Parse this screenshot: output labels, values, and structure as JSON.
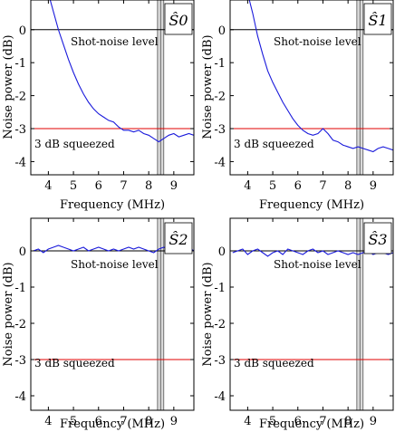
{
  "chart_data": [
    {
      "type": "line",
      "panel_label": "Ŝ0",
      "xlabel": "Frequency (MHz)",
      "ylabel": "Noise power (dB)",
      "xlim": [
        3.3,
        9.8
      ],
      "ylim": [
        -4.4,
        0.9
      ],
      "xticks": [
        4,
        5,
        6,
        7,
        8,
        9
      ],
      "yticks": [
        0,
        -1,
        -2,
        -3,
        -4
      ],
      "reference_lines": [
        {
          "label": "Shot-noise level",
          "y": 0,
          "color": "#000000"
        },
        {
          "label": "3 dB squeezed",
          "y": -3,
          "color": "#e00000"
        }
      ],
      "shaded_band": [
        8.35,
        8.6
      ],
      "series": [
        {
          "color": "#1a1adb",
          "x": [
            4.0,
            4.2,
            4.4,
            4.6,
            4.8,
            5.0,
            5.2,
            5.4,
            5.6,
            5.8,
            6.0,
            6.2,
            6.4,
            6.6,
            6.8,
            7.0,
            7.2,
            7.4,
            7.6,
            7.8,
            8.0,
            8.2,
            8.4,
            8.6,
            8.8,
            9.0,
            9.2,
            9.4,
            9.6,
            9.8
          ],
          "y": [
            1.1,
            0.55,
            0.0,
            -0.45,
            -0.9,
            -1.3,
            -1.65,
            -1.95,
            -2.2,
            -2.4,
            -2.55,
            -2.65,
            -2.75,
            -2.8,
            -2.95,
            -3.05,
            -3.05,
            -3.1,
            -3.05,
            -3.15,
            -3.2,
            -3.3,
            -3.4,
            -3.3,
            -3.2,
            -3.15,
            -3.25,
            -3.2,
            -3.15,
            -3.2
          ]
        }
      ]
    },
    {
      "type": "line",
      "panel_label": "Ŝ1",
      "xlabel": "Frequency (MHz)",
      "ylabel": "Noise power (dB)",
      "xlim": [
        3.3,
        9.8
      ],
      "ylim": [
        -4.4,
        0.9
      ],
      "xticks": [
        4,
        5,
        6,
        7,
        8,
        9
      ],
      "yticks": [
        0,
        -1,
        -2,
        -3,
        -4
      ],
      "reference_lines": [
        {
          "label": "Shot-noise level",
          "y": 0,
          "color": "#000000"
        },
        {
          "label": "3 dB squeezed",
          "y": -3,
          "color": "#e00000"
        }
      ],
      "shaded_band": [
        8.35,
        8.6
      ],
      "series": [
        {
          "color": "#1a1adb",
          "x": [
            4.0,
            4.2,
            4.4,
            4.6,
            4.8,
            5.0,
            5.2,
            5.4,
            5.6,
            5.8,
            6.0,
            6.2,
            6.4,
            6.6,
            6.8,
            7.0,
            7.2,
            7.4,
            7.6,
            7.8,
            8.0,
            8.2,
            8.4,
            8.6,
            8.8,
            9.0,
            9.2,
            9.4,
            9.6,
            9.8
          ],
          "y": [
            1.1,
            0.5,
            -0.2,
            -0.75,
            -1.25,
            -1.6,
            -1.9,
            -2.2,
            -2.45,
            -2.7,
            -2.9,
            -3.05,
            -3.15,
            -3.2,
            -3.15,
            -3.0,
            -3.15,
            -3.35,
            -3.4,
            -3.5,
            -3.55,
            -3.6,
            -3.55,
            -3.6,
            -3.65,
            -3.7,
            -3.6,
            -3.55,
            -3.6,
            -3.65
          ]
        }
      ]
    },
    {
      "type": "line",
      "panel_label": "Ŝ2",
      "xlabel": "Frequency (MHz)",
      "ylabel": "Noise power (dB)",
      "xlim": [
        3.3,
        9.8
      ],
      "ylim": [
        -4.4,
        0.9
      ],
      "xticks": [
        4,
        5,
        6,
        7,
        8,
        9
      ],
      "yticks": [
        0,
        -1,
        -2,
        -3,
        -4
      ],
      "reference_lines": [
        {
          "label": "Shot-noise level",
          "y": 0,
          "color": "#000000"
        },
        {
          "label": "3 dB squeezed",
          "y": -3,
          "color": "#e00000"
        }
      ],
      "shaded_band": [
        8.35,
        8.6
      ],
      "series": [
        {
          "color": "#1a1adb",
          "x": [
            3.4,
            3.6,
            3.8,
            4.0,
            4.2,
            4.4,
            4.6,
            4.8,
            5.0,
            5.2,
            5.4,
            5.6,
            5.8,
            6.0,
            6.2,
            6.4,
            6.6,
            6.8,
            7.0,
            7.2,
            7.4,
            7.6,
            7.8,
            8.0,
            8.2,
            8.4,
            8.6,
            8.8,
            9.0,
            9.2,
            9.4,
            9.6,
            9.8
          ],
          "y": [
            0.0,
            0.05,
            -0.05,
            0.05,
            0.1,
            0.15,
            0.1,
            0.05,
            0.0,
            0.05,
            0.1,
            0.0,
            0.05,
            0.1,
            0.05,
            0.0,
            0.05,
            0.0,
            0.05,
            0.1,
            0.05,
            0.1,
            0.05,
            0.0,
            -0.05,
            0.05,
            0.1,
            0.05,
            0.1,
            0.15,
            0.05,
            0.1,
            0.0
          ]
        }
      ]
    },
    {
      "type": "line",
      "panel_label": "Ŝ3",
      "xlabel": "Frequency (MHz)",
      "ylabel": "Noise power (dB)",
      "xlim": [
        3.3,
        9.8
      ],
      "ylim": [
        -4.4,
        0.9
      ],
      "xticks": [
        4,
        5,
        6,
        7,
        8,
        9
      ],
      "yticks": [
        0,
        -1,
        -2,
        -3,
        -4
      ],
      "reference_lines": [
        {
          "label": "Shot-noise level",
          "y": 0,
          "color": "#000000"
        },
        {
          "label": "3 dB squeezed",
          "y": -3,
          "color": "#e00000"
        }
      ],
      "shaded_band": [
        8.35,
        8.6
      ],
      "series": [
        {
          "color": "#1a1adb",
          "x": [
            3.4,
            3.6,
            3.8,
            4.0,
            4.2,
            4.4,
            4.6,
            4.8,
            5.0,
            5.2,
            5.4,
            5.6,
            5.8,
            6.0,
            6.2,
            6.4,
            6.6,
            6.8,
            7.0,
            7.2,
            7.4,
            7.6,
            7.8,
            8.0,
            8.2,
            8.4,
            8.6,
            8.8,
            9.0,
            9.2,
            9.4,
            9.6,
            9.8
          ],
          "y": [
            -0.05,
            0.0,
            0.05,
            -0.1,
            0.0,
            0.05,
            -0.05,
            -0.15,
            -0.05,
            0.0,
            -0.1,
            0.05,
            0.0,
            -0.05,
            -0.1,
            0.0,
            0.05,
            -0.05,
            0.0,
            -0.1,
            -0.05,
            0.0,
            -0.05,
            -0.1,
            -0.05,
            -0.1,
            -0.05,
            0.0,
            -0.1,
            -0.05,
            -0.05,
            -0.1,
            -0.05
          ]
        }
      ]
    }
  ]
}
